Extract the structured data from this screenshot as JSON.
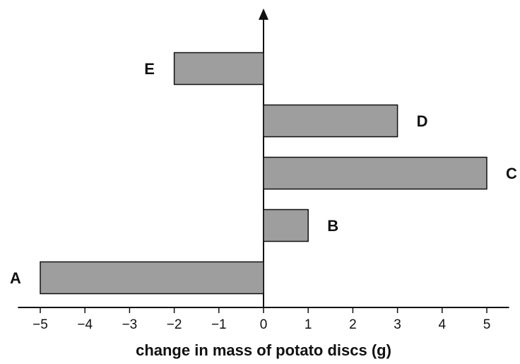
{
  "chart_data": {
    "type": "hbar",
    "x_label": "change in mass of potato discs (g)",
    "categories": [
      "A",
      "B",
      "C",
      "D",
      "E"
    ],
    "values": [
      -5,
      1,
      5,
      3,
      -2
    ],
    "color": "#9e9e9e",
    "xlim": [
      -5.5,
      5.5
    ],
    "xticks": [
      {
        "value": -5,
        "label": "−5"
      },
      {
        "value": -4,
        "label": "−4"
      },
      {
        "value": -3,
        "label": "−3"
      },
      {
        "value": -2,
        "label": "−2"
      },
      {
        "value": -1,
        "label": "−1"
      },
      0,
      1,
      2,
      3,
      4,
      5
    ]
  }
}
